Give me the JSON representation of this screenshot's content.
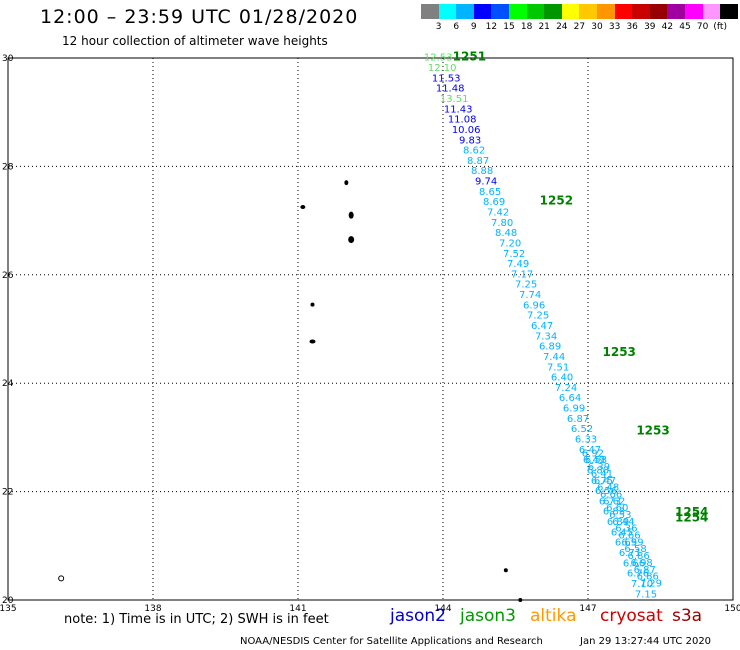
{
  "header": {
    "title": "12:00 – 23:59 UTC 01/28/2020",
    "subtitle": "12 hour collection of altimeter wave heights"
  },
  "legend": {
    "colors": [
      "#808080",
      "#00ffff",
      "#00b4ff",
      "#0000ff",
      "#0050ff",
      "#00ff00",
      "#00c800",
      "#009600",
      "#ffff00",
      "#ffc800",
      "#ff9600",
      "#ff0000",
      "#c80000",
      "#960000",
      "#a000a0",
      "#ff00ff",
      "#ff96ff",
      "#000000"
    ],
    "labels": [
      "3",
      "6",
      "9",
      "12",
      "15",
      "18",
      "21",
      "24",
      "27",
      "30",
      "33",
      "36",
      "39",
      "42",
      "45",
      "70",
      "(ft)"
    ]
  },
  "map": {
    "x_ticks": [
      "135",
      "138",
      "141",
      "144",
      "147",
      "150"
    ],
    "y_ticks": [
      "30",
      "28",
      "26",
      "24",
      "22",
      "20"
    ],
    "lon_range": [
      135,
      150
    ],
    "lat_range": [
      20,
      30
    ],
    "track_a": [
      "12.53",
      "12.10",
      "11.53",
      "11.48",
      "13.51",
      "11.43",
      "11.08",
      "10.06",
      "9.83",
      "8.62",
      "8.87",
      "8.88",
      "9.74",
      "8.65",
      "8.69",
      "7.42",
      "7.80",
      "8.48",
      "7.20",
      "7.52",
      "7.49",
      "7.17",
      "7.25",
      "7.74",
      "6.96",
      "7.25",
      "6.47",
      "7.34",
      "6.89",
      "7.44",
      "7.51",
      "6.40",
      "7.24",
      "6.64",
      "6.99",
      "6.87",
      "6.52",
      "6.33",
      "6.47",
      "6.49",
      "6.80",
      "6.75",
      "6.56",
      "6.73",
      "6.83",
      "6.89",
      "6.45",
      "6.69",
      "6.71",
      "6.66",
      "6.76",
      "7.10",
      "7.15"
    ],
    "track_b": [
      "6.92",
      "6.58",
      "6.39",
      "6.41",
      "6.47",
      "6.48",
      "6.66",
      "6.62",
      "6.60",
      "6.53",
      "6.44",
      "6.36",
      "6.66",
      "6.59",
      "6.58",
      "6.86",
      "6.98",
      "6.87",
      "6.86",
      "7.29"
    ],
    "pass_labels": [
      {
        "text": "1251",
        "lon": 144.2,
        "lat": 29.95
      },
      {
        "text": "1252",
        "lon": 146.0,
        "lat": 27.3
      },
      {
        "text": "1253",
        "lon": 147.3,
        "lat": 24.5
      },
      {
        "text": "1253",
        "lon": 148.0,
        "lat": 23.05
      },
      {
        "text": "1254",
        "lon": 148.8,
        "lat": 21.55
      },
      {
        "text": "1254",
        "lon": 148.8,
        "lat": 21.45
      }
    ],
    "pass_label_color": "#008000"
  },
  "footer": {
    "note": "note:  1) Time is in UTC;  2) SWH is in feet",
    "satellites": [
      {
        "name": "jason2",
        "color": "#0000cc"
      },
      {
        "name": "jason3",
        "color": "#009900"
      },
      {
        "name": "altika",
        "color": "#ff9900"
      },
      {
        "name": "cryosat",
        "color": "#cc0000"
      },
      {
        "name": "s3a",
        "color": "#990000"
      }
    ],
    "credit": "NOAA/NESDIS Center for Satellite Applications and Research",
    "timestamp": "Jan 29 13:27:44 UTC 2020"
  }
}
